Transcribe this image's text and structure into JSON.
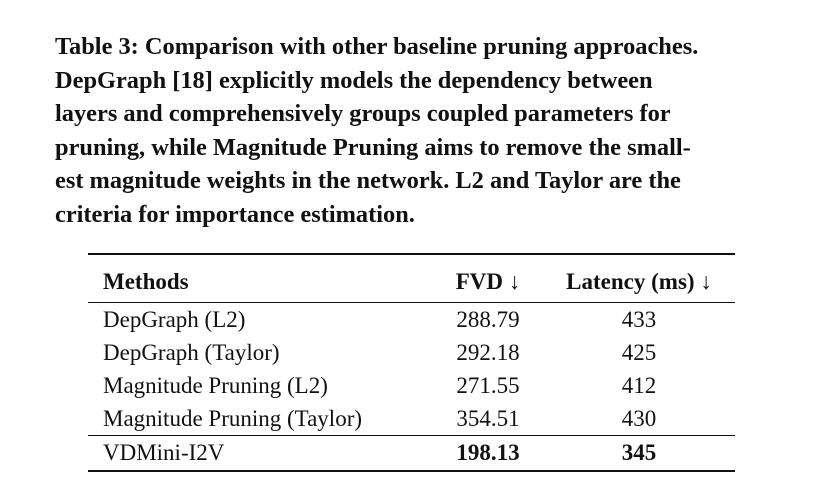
{
  "caption": {
    "lines": [
      "Table 3: Comparison with other baseline pruning approaches.",
      "DepGraph [18] explicitly models the dependency between",
      "layers and comprehensively groups coupled parameters for",
      "pruning, while Magnitude Pruning aims to remove the small-",
      "est magnitude weights in the network. L2 and Taylor are the",
      "criteria for importance estimation."
    ]
  },
  "table": {
    "headers": {
      "methods": "Methods",
      "fvd": "FVD ↓",
      "latency": "Latency (ms) ↓"
    },
    "rows": [
      {
        "method": "DepGraph (L2)",
        "fvd": "288.79",
        "latency": "433"
      },
      {
        "method": "DepGraph (Taylor)",
        "fvd": "292.18",
        "latency": "425"
      },
      {
        "method": "Magnitude Pruning (L2)",
        "fvd": "271.55",
        "latency": "412"
      },
      {
        "method": "Magnitude Pruning (Taylor)",
        "fvd": "354.51",
        "latency": "430"
      }
    ],
    "ours": {
      "method": "VDMini-I2V",
      "fvd": "198.13",
      "latency": "345"
    }
  }
}
